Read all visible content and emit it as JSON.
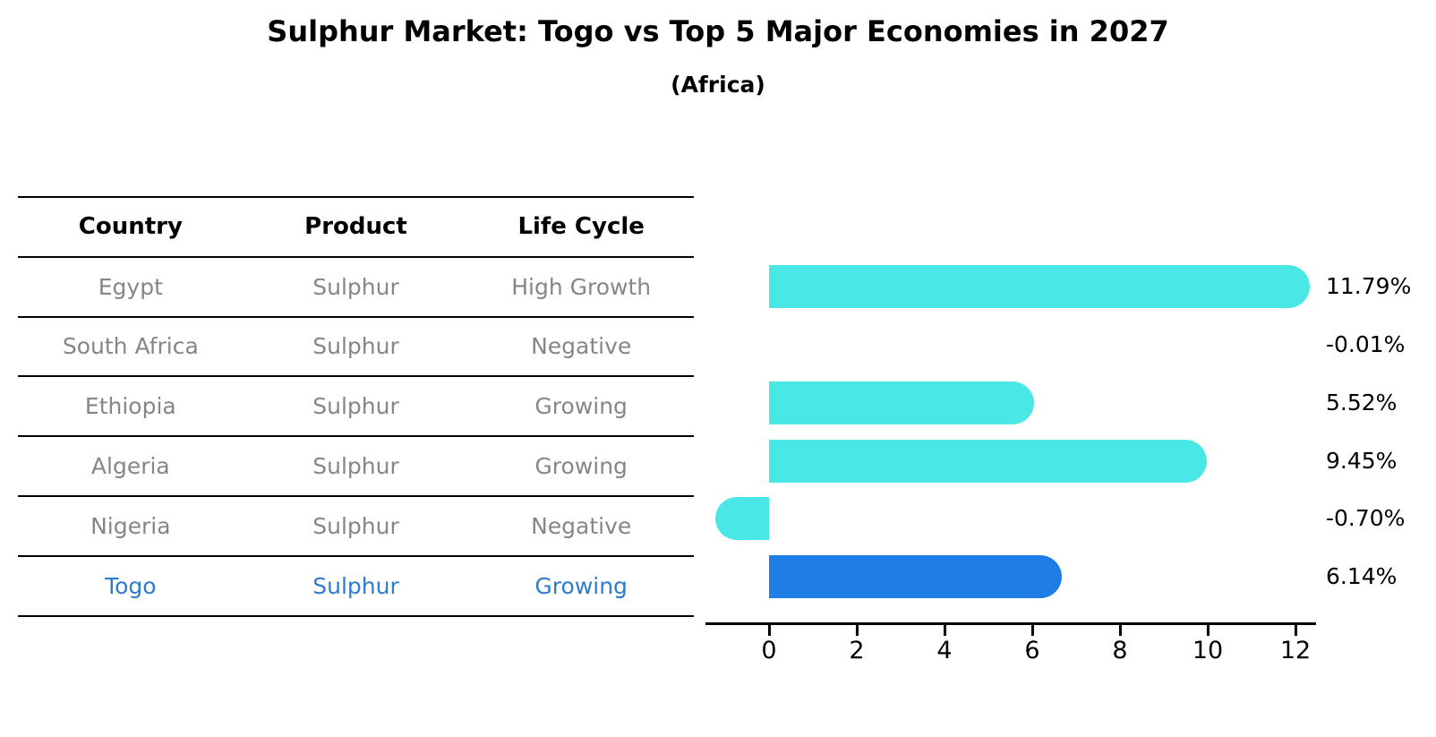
{
  "chart_data": {
    "type": "bar",
    "orientation": "horizontal",
    "title": "Sulphur Market: Togo vs Top 5 Major Economies in 2027",
    "subtitle": "(Africa)",
    "categories": [
      "Egypt",
      "South Africa",
      "Ethiopia",
      "Algeria",
      "Nigeria",
      "Togo"
    ],
    "values": [
      11.79,
      -0.01,
      5.52,
      9.45,
      -0.7,
      6.14
    ],
    "value_labels": [
      "11.79%",
      "-0.01%",
      "5.52%",
      "9.45%",
      "-0.70%",
      "6.14%"
    ],
    "xticks": [
      "0",
      "2",
      "4",
      "6",
      "8",
      "10",
      "12"
    ],
    "xtick_values": [
      0,
      2,
      4,
      6,
      8,
      10,
      12
    ],
    "xlim": [
      -1.45,
      12.5
    ],
    "highlight_index": 5,
    "legend": "none",
    "grid": false,
    "colors": {
      "bar_default": "#4AE7E7",
      "bar_highlight": "#1F7DE8",
      "highlight_text": "#2e7bcf",
      "table_text": "#868686",
      "axis": "#000000"
    }
  },
  "table": {
    "headers": [
      "Country",
      "Product",
      "Life Cycle"
    ],
    "rows": [
      {
        "country": "Egypt",
        "product": "Sulphur",
        "life_cycle": "High Growth",
        "highlighted": false
      },
      {
        "country": "South Africa",
        "product": "Sulphur",
        "life_cycle": "Negative",
        "highlighted": false
      },
      {
        "country": "Ethiopia",
        "product": "Sulphur",
        "life_cycle": "Growing",
        "highlighted": false
      },
      {
        "country": "Algeria",
        "product": "Sulphur",
        "life_cycle": "Growing",
        "highlighted": false
      },
      {
        "country": "Nigeria",
        "product": "Sulphur",
        "life_cycle": "Negative",
        "highlighted": false
      },
      {
        "country": "Togo",
        "product": "Sulphur",
        "life_cycle": "Growing",
        "highlighted": true
      }
    ]
  }
}
